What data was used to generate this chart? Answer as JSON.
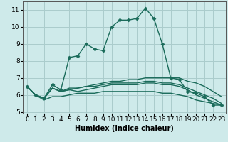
{
  "title": "",
  "xlabel": "Humidex (Indice chaleur)",
  "xlim": [
    -0.5,
    23.5
  ],
  "ylim": [
    4.9,
    11.5
  ],
  "yticks": [
    5,
    6,
    7,
    8,
    9,
    10,
    11
  ],
  "xticks": [
    0,
    1,
    2,
    3,
    4,
    5,
    6,
    7,
    8,
    9,
    10,
    11,
    12,
    13,
    14,
    15,
    16,
    17,
    18,
    19,
    20,
    21,
    22,
    23
  ],
  "bg_color": "#ceeaea",
  "grid_color": "#aacccc",
  "line_color": "#1a6b5a",
  "lines": [
    [
      6.5,
      6.0,
      5.8,
      6.6,
      6.3,
      8.2,
      8.3,
      9.0,
      8.7,
      8.6,
      10.0,
      10.4,
      10.4,
      10.5,
      11.1,
      10.5,
      9.0,
      7.0,
      6.9,
      6.2,
      6.1,
      5.9,
      5.4,
      5.4
    ],
    [
      6.5,
      6.0,
      5.8,
      6.4,
      6.2,
      6.4,
      6.4,
      6.5,
      6.6,
      6.7,
      6.8,
      6.8,
      6.9,
      6.9,
      7.0,
      7.0,
      7.0,
      7.0,
      7.0,
      6.8,
      6.7,
      6.5,
      6.2,
      5.9
    ],
    [
      6.5,
      6.0,
      5.8,
      6.4,
      6.2,
      6.3,
      6.4,
      6.5,
      6.5,
      6.6,
      6.7,
      6.7,
      6.7,
      6.7,
      6.8,
      6.8,
      6.7,
      6.7,
      6.6,
      6.4,
      6.2,
      6.0,
      5.8,
      5.5
    ],
    [
      6.5,
      6.0,
      5.8,
      6.4,
      6.2,
      6.3,
      6.2,
      6.3,
      6.4,
      6.5,
      6.6,
      6.6,
      6.6,
      6.6,
      6.7,
      6.7,
      6.6,
      6.6,
      6.5,
      6.3,
      6.0,
      5.8,
      5.6,
      5.4
    ],
    [
      6.5,
      6.0,
      5.7,
      5.9,
      5.9,
      6.0,
      6.1,
      6.1,
      6.1,
      6.2,
      6.2,
      6.2,
      6.2,
      6.2,
      6.2,
      6.2,
      6.1,
      6.1,
      6.0,
      5.9,
      5.7,
      5.6,
      5.5,
      5.4
    ]
  ],
  "marker_lines": [
    0
  ],
  "marker": "D",
  "markersize": 2.5,
  "linewidth": 1.0,
  "label_fontsize": 7,
  "tick_fontsize": 6.5
}
